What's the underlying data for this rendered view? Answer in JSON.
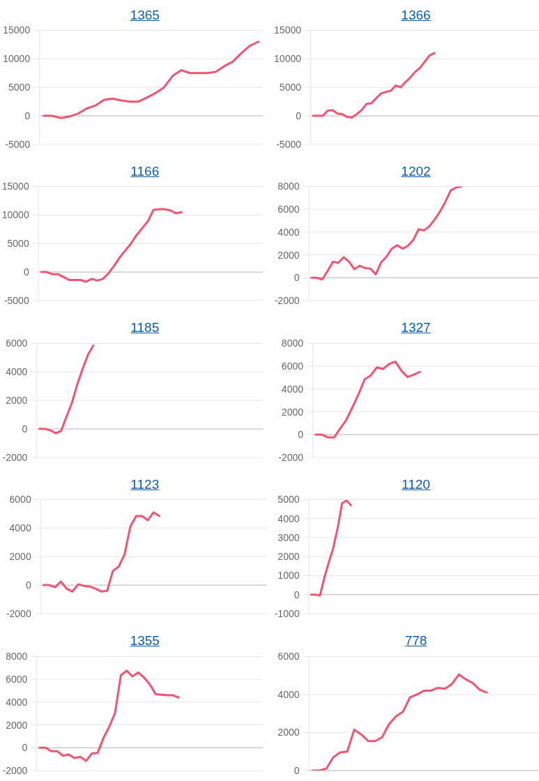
{
  "chart_data": [
    {
      "type": "line",
      "title": "1365",
      "categories": [
        null,
        null,
        null,
        null,
        null,
        null,
        null,
        null,
        null,
        null,
        null,
        null,
        null,
        null,
        null,
        null,
        null,
        null,
        null,
        null,
        null,
        null,
        null,
        null,
        null,
        null
      ],
      "series": [
        {
          "color": "#f25470",
          "values": [
            0,
            0,
            -400,
            -100,
            400,
            1300,
            1800,
            2800,
            3000,
            2700,
            2500,
            2500,
            3200,
            4000,
            5000,
            7000,
            8000,
            7500,
            7500,
            7500,
            7700,
            8700,
            9500,
            11000,
            12300,
            13000
          ]
        }
      ],
      "ylim": [
        -5000,
        15000
      ],
      "yticks": [
        -5000,
        0,
        5000,
        10000,
        15000
      ],
      "grid": "y",
      "tick_labels": "y"
    },
    {
      "type": "line",
      "title": "1366",
      "categories": [
        null,
        null,
        null,
        null,
        null,
        null,
        null,
        null,
        null,
        null,
        null,
        null,
        null,
        null,
        null,
        null,
        null,
        null,
        null,
        null,
        null,
        null,
        null,
        null,
        null,
        null,
        null,
        null,
        null,
        null,
        null,
        null,
        null,
        null,
        null,
        null,
        null,
        null,
        null,
        null,
        null,
        null,
        null,
        null,
        null,
        null,
        null
      ],
      "series": [
        {
          "color": "#f25470",
          "values": [
            0,
            0,
            0,
            900,
            1000,
            400,
            300,
            -200,
            -300,
            300,
            1000,
            2100,
            2200,
            3100,
            3900,
            4200,
            4400,
            5300,
            5000,
            5900,
            6700,
            7700,
            8400,
            9500,
            10600,
            11000,
            null,
            null,
            null,
            null,
            null,
            null,
            null,
            null,
            null,
            null,
            null,
            null,
            null,
            null,
            null,
            null,
            null,
            null,
            null,
            null,
            null
          ]
        }
      ],
      "ylim": [
        -5000,
        15000
      ],
      "yticks": [
        -5000,
        0,
        5000,
        10000,
        15000
      ],
      "grid": "y",
      "tick_labels": "y"
    },
    {
      "type": "line",
      "title": "1166",
      "categories": [
        null,
        null,
        null,
        null,
        null,
        null,
        null,
        null,
        null,
        null,
        null,
        null,
        null,
        null,
        null,
        null,
        null,
        null,
        null,
        null,
        null,
        null,
        null,
        null,
        null,
        null,
        null,
        null,
        null,
        null,
        null,
        null,
        null,
        null,
        null,
        null,
        null,
        null,
        null,
        null
      ],
      "series": [
        {
          "color": "#f25470",
          "values": [
            0,
            0,
            -400,
            -400,
            -900,
            -1400,
            -1400,
            -1400,
            -1700,
            -1200,
            -1500,
            -1200,
            -200,
            1100,
            2600,
            3800,
            5000,
            6500,
            7700,
            8900,
            10900,
            11000,
            11000,
            10800,
            10300,
            10500,
            null,
            null,
            null,
            null,
            null,
            null,
            null,
            null,
            null,
            null,
            null,
            null,
            null,
            null
          ]
        }
      ],
      "ylim": [
        -5000,
        15000
      ],
      "yticks": [
        -5000,
        0,
        5000,
        10000,
        15000
      ],
      "grid": "y",
      "tick_labels": "y"
    },
    {
      "type": "line",
      "title": "1202",
      "categories": [
        null,
        null,
        null,
        null,
        null,
        null,
        null,
        null,
        null,
        null,
        null,
        null,
        null,
        null,
        null,
        null,
        null,
        null,
        null,
        null,
        null,
        null,
        null,
        null,
        null,
        null,
        null,
        null,
        null,
        null,
        null,
        null,
        null,
        null,
        null,
        null,
        null,
        null,
        null,
        null,
        null,
        null,
        null
      ],
      "series": [
        {
          "color": "#f25470",
          "values": [
            0,
            0,
            -150,
            600,
            1400,
            1300,
            1800,
            1400,
            750,
            1050,
            850,
            800,
            300,
            1350,
            1850,
            2550,
            2850,
            2550,
            2800,
            3300,
            4250,
            4150,
            4500,
            5100,
            5800,
            6650,
            7650,
            7900,
            8000,
            null,
            null,
            null,
            null,
            null,
            null,
            null,
            null,
            null,
            null,
            null,
            null,
            null,
            null
          ]
        }
      ],
      "ylim": [
        -2000,
        8000
      ],
      "yticks": [
        -2000,
        0,
        2000,
        4000,
        6000,
        8000
      ],
      "grid": "y",
      "tick_labels": "y"
    },
    {
      "type": "line",
      "title": "1185",
      "categories": [
        null,
        null,
        null,
        null,
        null,
        null,
        null,
        null,
        null,
        null,
        null,
        null,
        null,
        null,
        null,
        null,
        null,
        null,
        null,
        null,
        null,
        null,
        null,
        null,
        null,
        null,
        null,
        null,
        null,
        null,
        null,
        null,
        null,
        null,
        null,
        null,
        null,
        null,
        null,
        null,
        null,
        null
      ],
      "series": [
        {
          "color": "#f25470",
          "values": [
            0,
            0,
            -100,
            -300,
            -150,
            850,
            1800,
            3100,
            4200,
            5200,
            5850,
            null,
            null,
            null,
            null,
            null,
            null,
            null,
            null,
            null,
            null,
            null,
            null,
            null,
            null,
            null,
            null,
            null,
            null,
            null,
            null,
            null,
            null,
            null,
            null,
            null,
            null,
            null,
            null,
            null,
            null,
            null
          ]
        }
      ],
      "ylim": [
        -2000,
        6000
      ],
      "yticks": [
        -2000,
        0,
        2000,
        4000,
        6000
      ],
      "grid": "y",
      "tick_labels": "y"
    },
    {
      "type": "line",
      "title": "1327",
      "categories": [
        null,
        null,
        null,
        null,
        null,
        null,
        null,
        null,
        null,
        null,
        null,
        null,
        null,
        null,
        null,
        null,
        null,
        null,
        null,
        null,
        null,
        null,
        null,
        null,
        null,
        null,
        null,
        null,
        null,
        null,
        null,
        null,
        null,
        null,
        null,
        null,
        null
      ],
      "series": [
        {
          "color": "#f25470",
          "values": [
            0,
            0,
            -250,
            -250,
            550,
            1300,
            2400,
            3550,
            4850,
            5200,
            5900,
            5750,
            6200,
            6400,
            5600,
            5050,
            5250,
            5500,
            null,
            null,
            null,
            null,
            null,
            null,
            null,
            null,
            null,
            null,
            null,
            null,
            null,
            null,
            null,
            null,
            null,
            null,
            null
          ]
        }
      ],
      "ylim": [
        -2000,
        8000
      ],
      "yticks": [
        -2000,
        0,
        2000,
        4000,
        6000,
        8000
      ],
      "grid": "y",
      "tick_labels": "y"
    },
    {
      "type": "line",
      "title": "1123",
      "categories": [
        null,
        null,
        null,
        null,
        null,
        null,
        null,
        null,
        null,
        null,
        null,
        null,
        null,
        null,
        null,
        null,
        null,
        null,
        null,
        null,
        null,
        null,
        null,
        null,
        null,
        null,
        null,
        null,
        null,
        null,
        null,
        null,
        null,
        null,
        null,
        null,
        null,
        null,
        null
      ],
      "series": [
        {
          "color": "#f25470",
          "values": [
            0,
            0,
            -150,
            250,
            -250,
            -450,
            50,
            -50,
            -100,
            -250,
            -450,
            -400,
            1000,
            1300,
            2150,
            4100,
            4850,
            4850,
            4550,
            5100,
            4850,
            null,
            null,
            null,
            null,
            null,
            null,
            null,
            null,
            null,
            null,
            null,
            null,
            null,
            null,
            null,
            null,
            null,
            null
          ]
        }
      ],
      "ylim": [
        -2000,
        6000
      ],
      "yticks": [
        -2000,
        0,
        2000,
        4000,
        6000
      ],
      "grid": "y",
      "tick_labels": "y"
    },
    {
      "type": "line",
      "title": "1120",
      "categories": [
        null,
        null,
        null,
        null,
        null,
        null,
        null,
        null,
        null,
        null,
        null,
        null,
        null,
        null,
        null,
        null,
        null,
        null,
        null,
        null,
        null,
        null,
        null,
        null,
        null,
        null,
        null,
        null,
        null,
        null,
        null,
        null,
        null,
        null,
        null,
        null,
        null,
        null,
        null,
        null,
        null,
        null,
        null,
        null,
        null,
        null,
        null,
        null,
        null,
        null,
        null,
        null
      ],
      "series": [
        {
          "color": "#f25470",
          "values": [
            0,
            0,
            -50,
            900,
            1700,
            2450,
            3500,
            4800,
            4950,
            4700,
            null,
            null,
            null,
            null,
            null,
            null,
            null,
            null,
            null,
            null,
            null,
            null,
            null,
            null,
            null,
            null,
            null,
            null,
            null,
            null,
            null,
            null,
            null,
            null,
            null,
            null,
            null,
            null,
            null,
            null,
            null,
            null,
            null,
            null,
            null,
            null,
            null,
            null,
            null,
            null,
            null,
            null
          ]
        }
      ],
      "ylim": [
        -1000,
        5000
      ],
      "yticks": [
        -1000,
        0,
        1000,
        2000,
        3000,
        4000,
        5000
      ],
      "grid": "y",
      "tick_labels": "y"
    },
    {
      "type": "line",
      "title": "1355",
      "categories": [
        null,
        null,
        null,
        null,
        null,
        null,
        null,
        null,
        null,
        null,
        null,
        null,
        null,
        null,
        null,
        null,
        null,
        null,
        null,
        null,
        null,
        null,
        null,
        null,
        null,
        null,
        null,
        null,
        null,
        null,
        null,
        null,
        null,
        null,
        null,
        null,
        null,
        null,
        null
      ],
      "series": [
        {
          "color": "#f25470",
          "values": [
            0,
            0,
            -300,
            -300,
            -700,
            -600,
            -900,
            -800,
            -1150,
            -500,
            -450,
            850,
            1850,
            3050,
            6350,
            6750,
            6250,
            6600,
            6150,
            5550,
            4700,
            4650,
            4600,
            4600,
            4400,
            null,
            null,
            null,
            null,
            null,
            null,
            null,
            null,
            null,
            null,
            null,
            null,
            null,
            null
          ]
        }
      ],
      "ylim": [
        -2000,
        8000
      ],
      "yticks": [
        -2000,
        0,
        2000,
        4000,
        6000,
        8000
      ],
      "grid": "y",
      "tick_labels": "y"
    },
    {
      "type": "line",
      "title": "778",
      "categories": [
        null,
        null,
        null,
        null,
        null,
        null,
        null,
        null,
        null,
        null,
        null,
        null,
        null,
        null,
        null,
        null,
        null,
        null,
        null,
        null,
        null,
        null,
        null,
        null,
        null,
        null,
        null,
        null,
        null,
        null,
        null,
        null,
        null
      ],
      "series": [
        {
          "color": "#f25470",
          "values": [
            0,
            0,
            100,
            700,
            950,
            1000,
            2150,
            1900,
            1550,
            1550,
            1750,
            2450,
            2850,
            3100,
            3850,
            4000,
            4200,
            4200,
            4350,
            4300,
            4550,
            5050,
            4800,
            4600,
            4250,
            4100,
            null,
            null,
            null,
            null,
            null,
            null,
            null
          ]
        }
      ],
      "ylim": [
        0,
        6000
      ],
      "yticks": [
        0,
        2000,
        4000,
        6000
      ],
      "grid": "y",
      "tick_labels": "y"
    }
  ]
}
